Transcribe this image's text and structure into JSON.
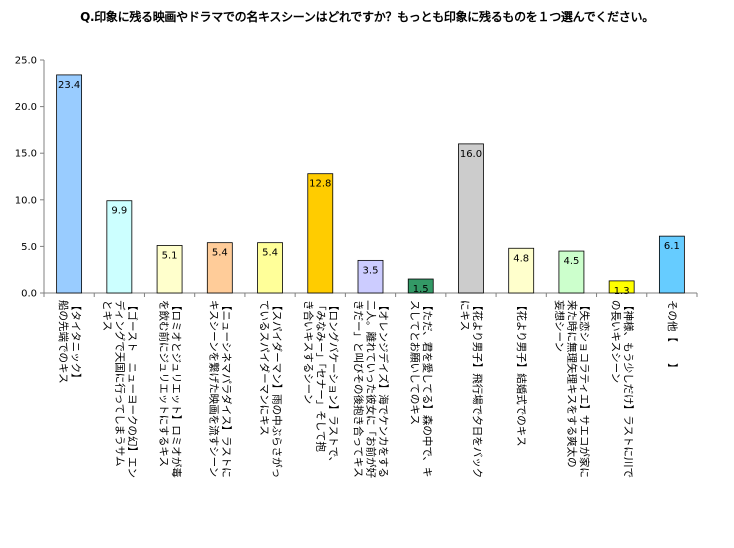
{
  "chart_data": {
    "type": "bar",
    "title": "Q.印象に残る映画やドラマでの名キスシーンはどれですか？もっとも印象に残るものを１つ選んでください。",
    "xlabel": "",
    "ylabel": "",
    "ylim": [
      0,
      25
    ],
    "yticks": [
      "0.0",
      "5.0",
      "10.0",
      "15.0",
      "20.0",
      "25.0"
    ],
    "grid": false,
    "categories": [
      [
        "【タイタニック】",
        "船の先端でのキス"
      ],
      [
        "【ゴースト　ニューヨークの幻】エン",
        "ディングで天国に行ってしまうサム",
        "とキス"
      ],
      [
        "【ロミオとジュリエット】ロミオが毒",
        "を飲む前にジュリエットにするキス"
      ],
      [
        "【ニューシネマパラダイス】ラストに",
        "キスシーンを繋げた映画を流すシーン"
      ],
      [
        "【スパイダーマン】雨の中ぶらさがっ",
        "ているスパイダーマンにキス"
      ],
      [
        "【ロングバケーション】ラストで、",
        "「みなみー」「セナー」そして抱",
        "き合いキスするシーン"
      ],
      [
        "【オレンジデイズ】海でケンカをする",
        "二人。離れていった彼女に「お前が好",
        "きだー」と叫びその後抱き合ってキス"
      ],
      [
        "【ただ、君を愛してる】森の中で、キ",
        "スしてとお願いしてのキス"
      ],
      [
        "【花より男子】飛行場で夕日をバック",
        "にキス"
      ],
      [
        "【花より男子】結婚式でのキス"
      ],
      [
        "【失恋ショコラティエ】サエコが家に",
        "来た時に無理矢理キスをする爽太の",
        "妄想シーン"
      ],
      [
        "【神様、もう少しだけ】ラストに川で",
        "の長いキスシーン"
      ],
      [
        "その他【　　】"
      ]
    ],
    "values": [
      23.4,
      9.9,
      5.1,
      5.4,
      5.4,
      12.8,
      3.5,
      1.5,
      16.0,
      4.8,
      4.5,
      1.3,
      6.1
    ],
    "value_labels": [
      "23.4",
      "9.9",
      "5.1",
      "5.4",
      "5.4",
      "12.8",
      "3.5",
      "1.5",
      "16.0",
      "4.8",
      "4.5",
      "1.3",
      "6.1"
    ],
    "colors": [
      "#99ccff",
      "#ccffff",
      "#ffffcc",
      "#ffcc99",
      "#ffff99",
      "#ffcc00",
      "#ccccff",
      "#339966",
      "#cccccc",
      "#ffffcc",
      "#ccffcc",
      "#ffff00",
      "#66ccff"
    ]
  }
}
